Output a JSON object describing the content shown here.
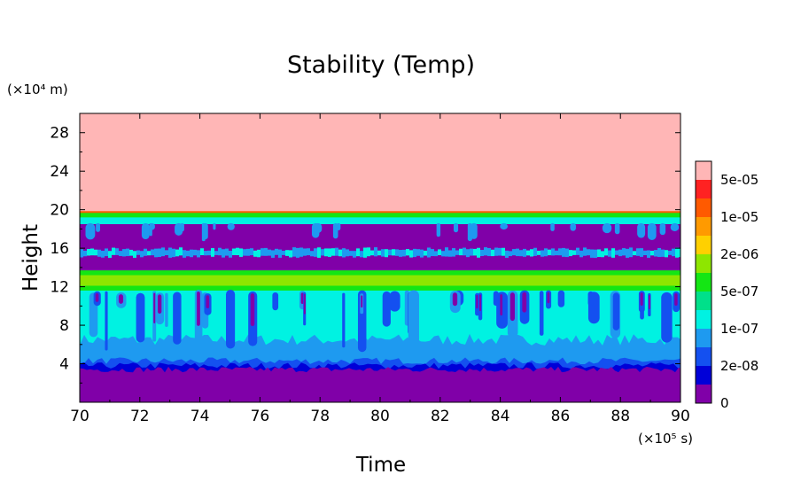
{
  "chart_data": {
    "type": "heatmap",
    "title": "Stability (Temp)",
    "xlabel": "Time",
    "ylabel": "Height",
    "x_unit": "(×10⁵ s)",
    "y_unit": "(×10⁴ m)",
    "xlim": [
      70,
      90
    ],
    "ylim": [
      0,
      30
    ],
    "xticks": [
      "70",
      "72",
      "74",
      "76",
      "78",
      "80",
      "82",
      "84",
      "86",
      "88",
      "90"
    ],
    "yticks": [
      "4",
      "8",
      "12",
      "16",
      "20",
      "24",
      "28"
    ],
    "colorbar": {
      "labels": [
        "0",
        "2e-08",
        "1e-07",
        "5e-07",
        "2e-06",
        "1e-05",
        "5e-05"
      ],
      "colors": [
        "#8000a8",
        "#0000d8",
        "#1450f0",
        "#1e9af0",
        "#00f2e2",
        "#00e08a",
        "#14e614",
        "#8ee600",
        "#ffd000",
        "#ff9a00",
        "#ff5a00",
        "#ff2222",
        "#ffb6b6"
      ]
    },
    "layers": [
      {
        "z": "0",
        "y": [
          0,
          0.3
        ]
      },
      {
        "z": "0",
        "y": [
          0.3,
          3.5
        ]
      },
      {
        "z": "2e-08 to 1e-07",
        "y": [
          3.5,
          4.5
        ]
      },
      {
        "z": "1e-07",
        "y": [
          4.5,
          11.6
        ]
      },
      {
        "z": "0",
        "y": [
          9.0,
          11.5
        ],
        "pattern": "vertical plumes"
      },
      {
        "z": "5e-07 to 2e-06",
        "y": [
          11.6,
          13.8
        ]
      },
      {
        "z": "0",
        "y": [
          13.8,
          18.8
        ]
      },
      {
        "z": "1e-07",
        "y": [
          15.1,
          15.8
        ]
      },
      {
        "z": "1e-07 to 5e-07",
        "y": [
          18.5,
          19.5
        ]
      },
      {
        "z": "5e-05",
        "y": [
          19.6,
          30
        ]
      }
    ]
  }
}
